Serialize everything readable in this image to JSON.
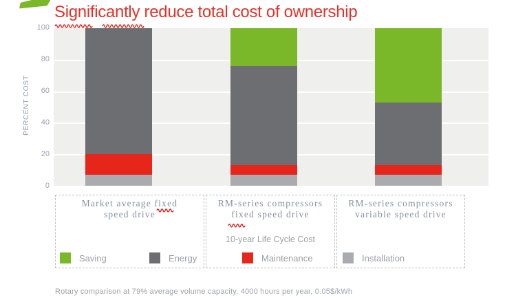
{
  "title": "Significantly reduce total cost of ownership",
  "chart_data": {
    "type": "bar",
    "stacked": true,
    "title": "Significantly reduce total cost of ownership",
    "categories": [
      "Market average fixed speed drive",
      "RM-series compressors fixed speed drive",
      "RM-series compressors variable speed drive"
    ],
    "series": [
      {
        "name": "Installation",
        "color": "#a9abae",
        "values": [
          7,
          7,
          7
        ]
      },
      {
        "name": "Maintenance",
        "color": "#e7261b",
        "values": [
          13,
          6,
          6
        ]
      },
      {
        "name": "Energy",
        "color": "#6d6e71",
        "values": [
          80,
          63,
          40
        ]
      },
      {
        "name": "Saving",
        "color": "#7ab829",
        "values": [
          0,
          24,
          47
        ]
      }
    ],
    "ylabel": "PERCENT COST",
    "ylim": [
      0,
      100
    ],
    "yticks": [
      0,
      20,
      40,
      60,
      80,
      100
    ],
    "grid": "horizontal",
    "legend_position": "bottom"
  },
  "panels": [
    {
      "label_line1": "Market average fixed",
      "label_line2": "speed drive",
      "legend": [
        {
          "name": "Saving",
          "color": "#7ab829"
        },
        {
          "name": "Energy",
          "color": "#6d6e71"
        }
      ]
    },
    {
      "label_line1": "RM-series compressors",
      "label_line2": "fixed speed drive",
      "note": "10-year Life Cycle Cost",
      "legend": [
        {
          "name": "Maintenance",
          "color": "#e7261b"
        }
      ]
    },
    {
      "label_line1": "RM-series compressors",
      "label_line2": "variable speed drive",
      "legend": [
        {
          "name": "Installation",
          "color": "#a9abae"
        }
      ]
    }
  ],
  "footnote": "Rotary comparison at 79% average volume capacity, 4000 hours per year, 0.05$/kWh",
  "colors": {
    "title_red": "#e43229",
    "squiggle_red": "#e0231c",
    "plot_background": "#efefed",
    "axis_text": "#97a1b4"
  }
}
